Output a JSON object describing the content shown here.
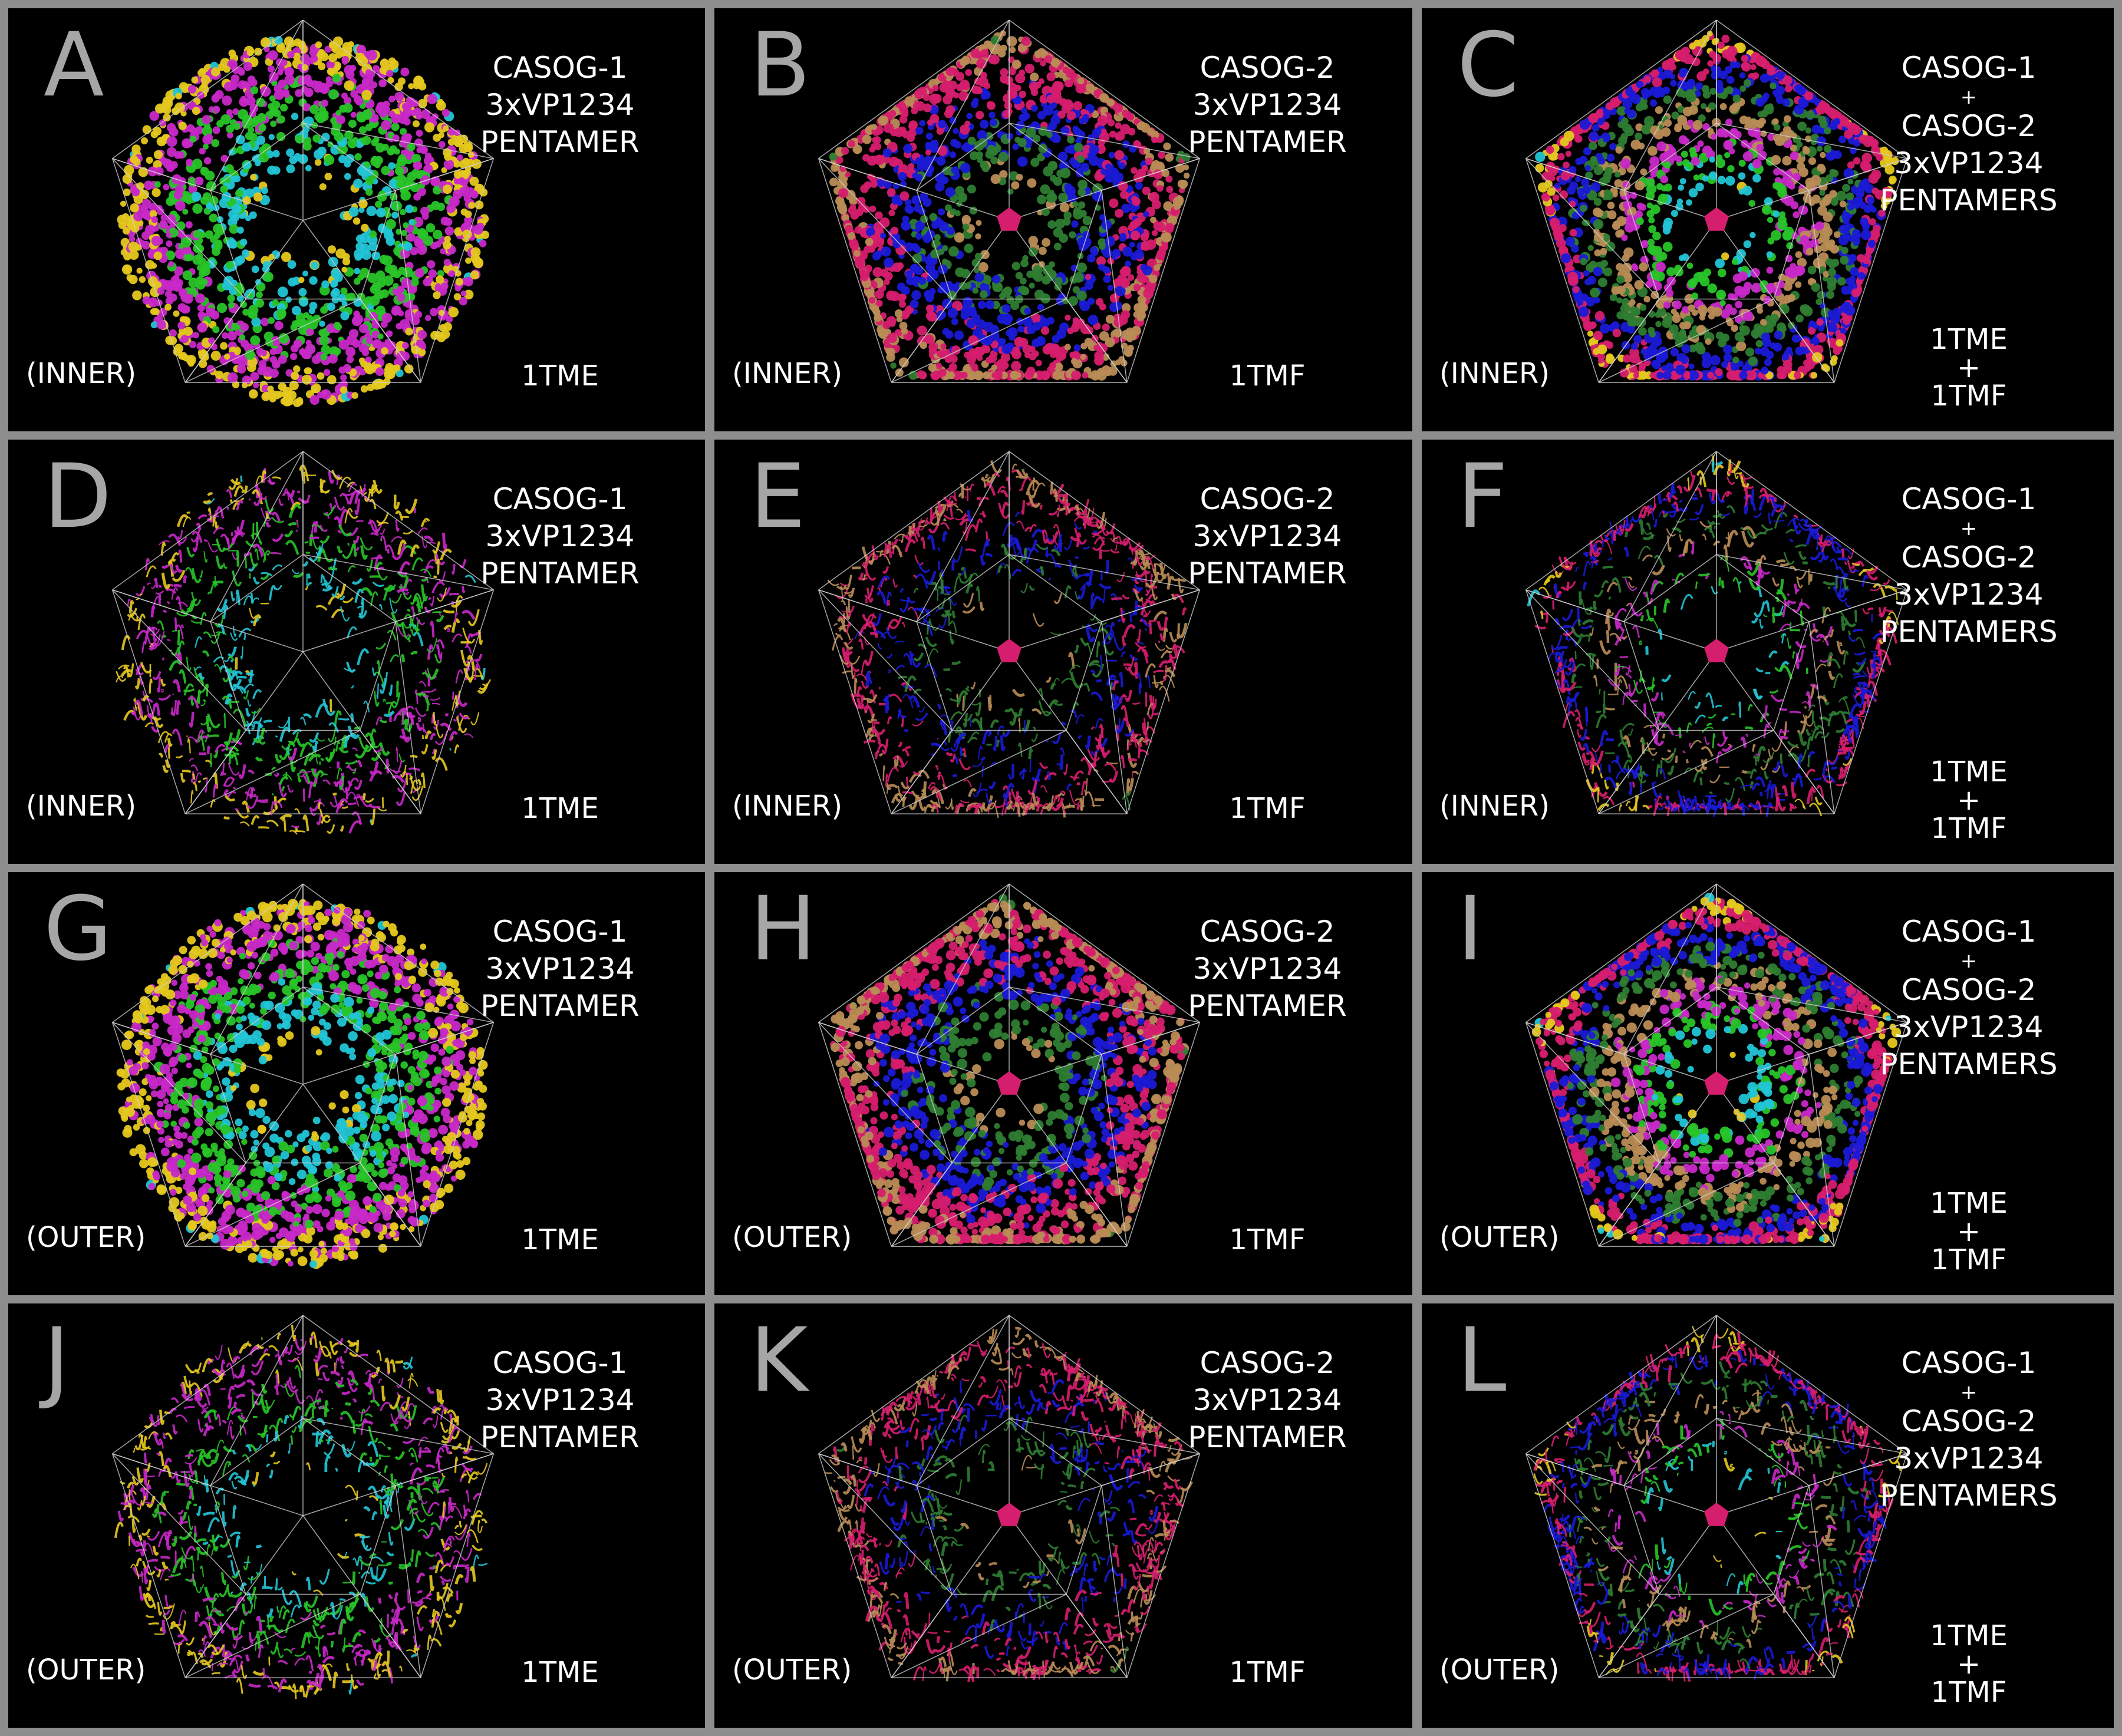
{
  "colors": {
    "background": "#000000",
    "border": "#8e8e8e",
    "letter": "#a6a6a6",
    "text": "#ffffff",
    "casog1": [
      "#e5c81e",
      "#22c5d6",
      "#28c428",
      "#c828c8"
    ],
    "casog2": [
      "#b98c55",
      "#2e7d32",
      "#1a1ad6",
      "#d61e6e"
    ],
    "frame": "#d0d0d0"
  },
  "panels": [
    {
      "letter": "A",
      "title": [
        "CASOG-1",
        "3xVP1234",
        "PENTAMER"
      ],
      "side": "(INNER)",
      "pdb": [
        "1TME"
      ],
      "set": "casog1",
      "style": "sphere"
    },
    {
      "letter": "B",
      "title": [
        "CASOG-2",
        "3xVP1234",
        "PENTAMER"
      ],
      "side": "(INNER)",
      "pdb": [
        "1TMF"
      ],
      "set": "casog2",
      "style": "sphere"
    },
    {
      "letter": "C",
      "title": [
        "CASOG-1",
        "+",
        "CASOG-2",
        "3xVP1234",
        "PENTAMERS"
      ],
      "side": "(INNER)",
      "pdb": [
        "1TME",
        "+",
        "1TMF"
      ],
      "set": "both",
      "style": "sphere"
    },
    {
      "letter": "D",
      "title": [
        "CASOG-1",
        "3xVP1234",
        "PENTAMER"
      ],
      "side": "(INNER)",
      "pdb": [
        "1TME"
      ],
      "set": "casog1",
      "style": "ribbon"
    },
    {
      "letter": "E",
      "title": [
        "CASOG-2",
        "3xVP1234",
        "PENTAMER"
      ],
      "side": "(INNER)",
      "pdb": [
        "1TMF"
      ],
      "set": "casog2",
      "style": "ribbon"
    },
    {
      "letter": "F",
      "title": [
        "CASOG-1",
        "+",
        "CASOG-2",
        "3xVP1234",
        "PENTAMERS"
      ],
      "side": "(INNER)",
      "pdb": [
        "1TME",
        "+",
        "1TMF"
      ],
      "set": "both",
      "style": "ribbon"
    },
    {
      "letter": "G",
      "title": [
        "CASOG-1",
        "3xVP1234",
        "PENTAMER"
      ],
      "side": "(OUTER)",
      "pdb": [
        "1TME"
      ],
      "set": "casog1",
      "style": "sphere"
    },
    {
      "letter": "H",
      "title": [
        "CASOG-2",
        "3xVP1234",
        "PENTAMER"
      ],
      "side": "(OUTER)",
      "pdb": [
        "1TMF"
      ],
      "set": "casog2",
      "style": "sphere"
    },
    {
      "letter": "I",
      "title": [
        "CASOG-1",
        "+",
        "CASOG-2",
        "3xVP1234",
        "PENTAMERS"
      ],
      "side": "(OUTER)",
      "pdb": [
        "1TME",
        "+",
        "1TMF"
      ],
      "set": "both",
      "style": "sphere"
    },
    {
      "letter": "J",
      "title": [
        "CASOG-1",
        "3xVP1234",
        "PENTAMER"
      ],
      "side": "(OUTER)",
      "pdb": [
        "1TME"
      ],
      "set": "casog1",
      "style": "ribbon"
    },
    {
      "letter": "K",
      "title": [
        "CASOG-2",
        "3xVP1234",
        "PENTAMER"
      ],
      "side": "(OUTER)",
      "pdb": [
        "1TMF"
      ],
      "set": "casog2",
      "style": "ribbon"
    },
    {
      "letter": "L",
      "title": [
        "CASOG-1",
        "+",
        "CASOG-2",
        "3xVP1234",
        "PENTAMERS"
      ],
      "side": "(OUTER)",
      "pdb": [
        "1TME",
        "+",
        "1TMF"
      ],
      "set": "both",
      "style": "ribbon"
    }
  ]
}
